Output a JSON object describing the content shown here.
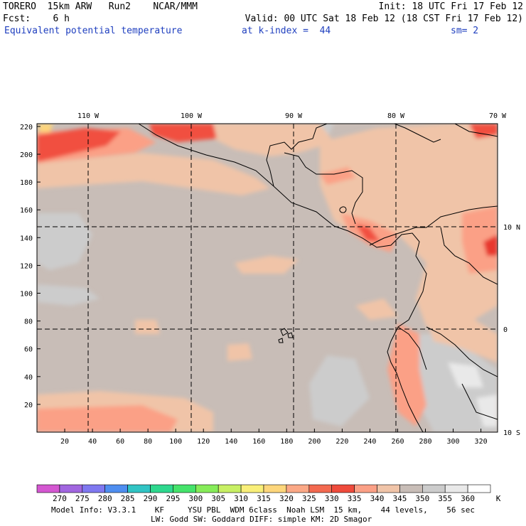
{
  "header": {
    "line1_left": "TORERO  15km ARW   Run2    NCAR/MMM",
    "line1_right": "Init: 18 UTC Fri 17 Feb 12",
    "line2_left": "Fcst:    6 h",
    "line2_right": "Valid: 00 UTC Sat 18 Feb 12 (18 CST Fri 17 Feb 12)",
    "line3_field": "Equivalent potential temperature",
    "line3_level": "at k-index =  44",
    "line3_sm": "sm= 2"
  },
  "map": {
    "top_lon_labels": [
      "110 W",
      "100 W",
      "90 W",
      "80 W",
      "70 W"
    ],
    "right_lat_labels": [
      "10 N",
      "0",
      "10 S"
    ],
    "y_ticks": [
      "220",
      "200",
      "180",
      "160",
      "140",
      "120",
      "100",
      "80",
      "60",
      "40",
      "20"
    ],
    "x_ticks": [
      "20",
      "40",
      "60",
      "80",
      "100",
      "120",
      "140",
      "160",
      "180",
      "200",
      "220",
      "240",
      "260",
      "280",
      "300",
      "320"
    ],
    "colors": {
      "background": "#c8bdb7",
      "cool": "#cccccc",
      "cold": "#e9e9e9",
      "warm1": "#f0c4a8",
      "warm2": "#fba086",
      "warm3": "#f7815f",
      "hot1": "#f14f3f",
      "hot2": "#e8372e",
      "coast": "#000000",
      "gridline": "#000000"
    }
  },
  "colorbar": {
    "labels": [
      "270",
      "275",
      "280",
      "285",
      "290",
      "295",
      "300",
      "305",
      "310",
      "315",
      "320",
      "325",
      "330",
      "335",
      "340",
      "345",
      "350",
      "355",
      "360"
    ],
    "unit": "K",
    "colors": [
      "#d457d1",
      "#a166e0",
      "#7f78f0",
      "#4f8ef0",
      "#31c4c4",
      "#2ed88e",
      "#45e36b",
      "#86ec59",
      "#c8f064",
      "#f9ef79",
      "#fdd67b",
      "#fba886",
      "#f36950",
      "#ef4b3c",
      "#fba086",
      "#f0c4a8",
      "#c8bdb7",
      "#cccccc",
      "#e9e9e9",
      "#ffffff"
    ]
  },
  "footer": {
    "line1": "Model Info: V3.3.1    KF     YSU PBL  WDM 6class  Noah LSM  15 km,    44 levels,    56 sec",
    "line2": "LW: Godd SW: Goddard DIFF: simple KM: 2D Smagor"
  }
}
